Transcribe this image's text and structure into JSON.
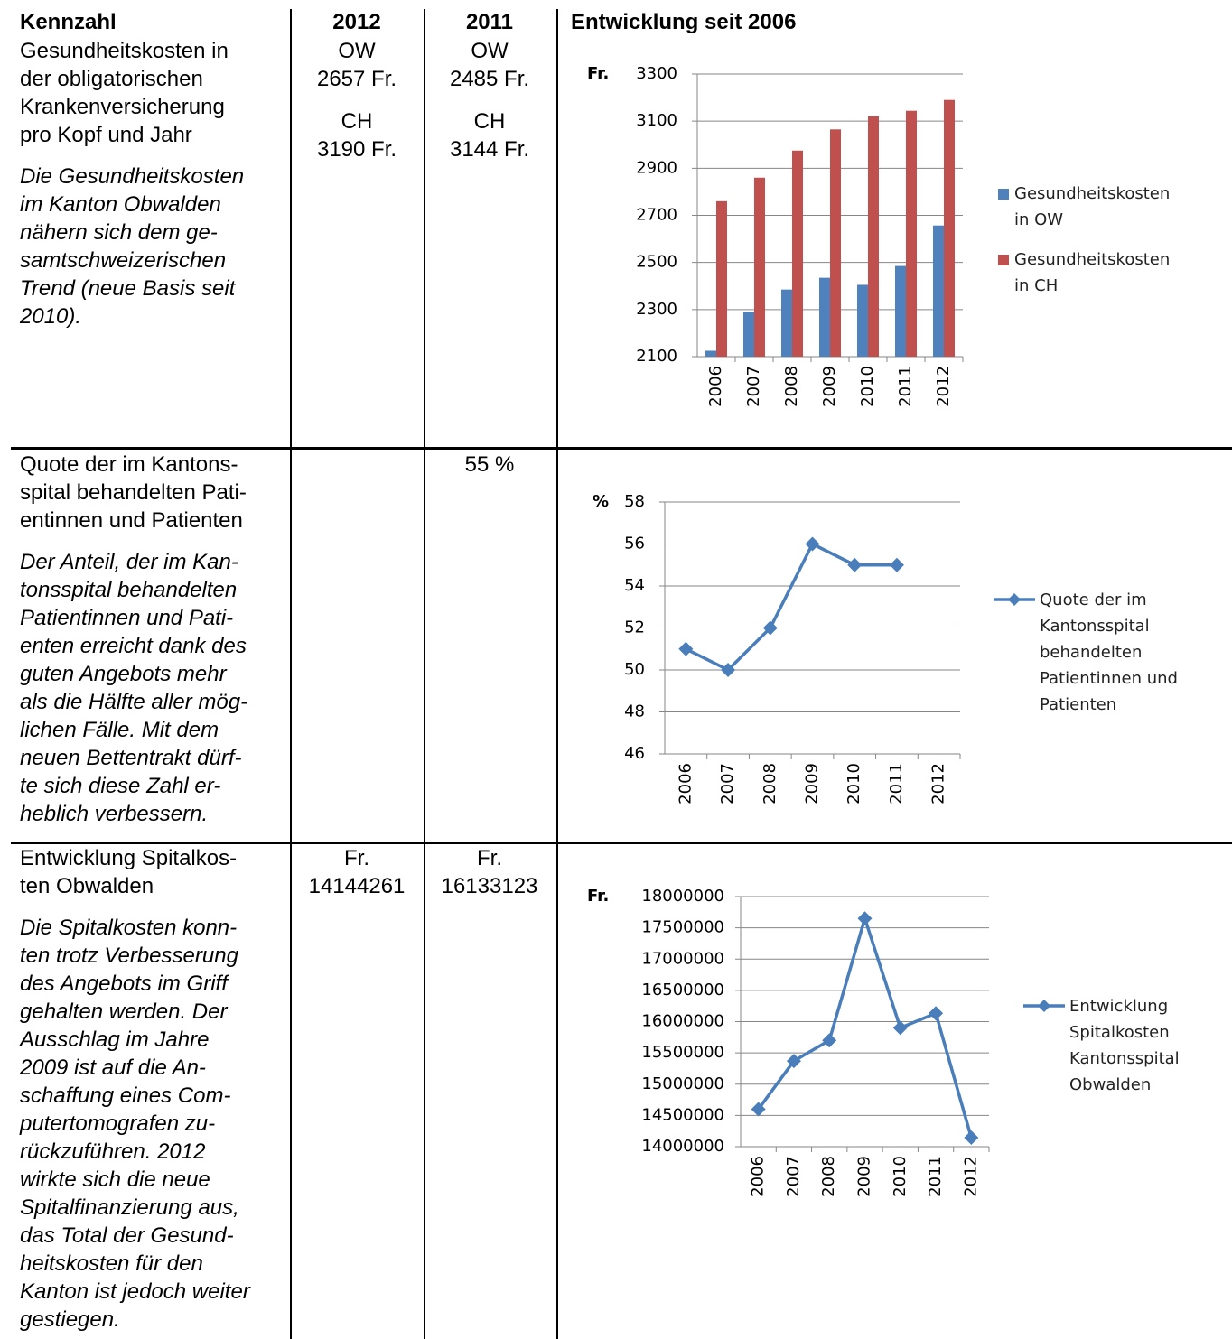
{
  "header": {
    "kennzahl": "Kennzahl",
    "y2012": "2012",
    "y2011": "2011",
    "entwicklung": "Entwicklung seit 2006"
  },
  "table": {
    "rows": [
      {
        "title_lines": [
          "Gesundheitskosten in",
          "der obligatorischen",
          "Krankenversicherung",
          "pro Kopf und Jahr"
        ],
        "description_lines": [
          "Die Gesundheitskosten",
          "im Kanton Obwalden",
          "nähern sich dem ge-",
          "samtschweizerischen",
          "Trend (neue Basis seit",
          "2010)."
        ],
        "y2012": [
          [
            "OW",
            "2657 Fr."
          ],
          [
            "CH",
            "3190 Fr."
          ]
        ],
        "y2011": [
          [
            "OW",
            "2485 Fr."
          ],
          [
            "CH",
            "3144 Fr."
          ]
        ]
      },
      {
        "title_lines": [
          "Quote der im Kantons-",
          "spital behandelten Pati-",
          "entinnen und Patienten"
        ],
        "description_lines": [
          "Der Anteil, der im Kan-",
          "tonsspital behandelten",
          "Patientinnen und Pati-",
          "enten erreicht dank des",
          "guten Angebots mehr",
          "als die Hälfte aller mög-",
          "lichen Fälle. Mit dem",
          "neuen Bettentrakt dürf-",
          "te sich diese Zahl er-",
          "heblich verbessern."
        ],
        "y2012": [],
        "y2011": [
          [
            "55 %"
          ]
        ]
      },
      {
        "title_lines": [
          "Entwicklung Spitalkos-",
          "ten Obwalden"
        ],
        "description_lines": [
          "Die Spitalkosten konn-",
          "ten trotz Verbesserung",
          "des Angebots im Griff",
          "gehalten werden. Der",
          "Ausschlag im Jahre",
          "2009 ist auf die An-",
          "schaffung eines Com-",
          "putertomografen zu-",
          "rückzuführen. 2012",
          "wirkte sich die neue",
          "Spitalfinanzierung aus,",
          "das Total der Gesund-",
          "heitskosten für den",
          "Kanton ist jedoch weiter",
          "gestiegen."
        ],
        "y2012": [
          [
            "Fr.",
            "14144261"
          ]
        ],
        "y2011": [
          [
            "Fr.",
            "16133123"
          ]
        ]
      }
    ]
  },
  "chart_data": [
    {
      "type": "bar",
      "y_label": "Fr.",
      "categories": [
        "2006",
        "2007",
        "2008",
        "2009",
        "2010",
        "2011",
        "2012"
      ],
      "series": [
        {
          "name": "Gesundheitskosten in OW",
          "color": "#4f81bd",
          "values": [
            2125,
            2290,
            2385,
            2435,
            2405,
            2485,
            2657
          ]
        },
        {
          "name": "Gesundheitskosten in CH",
          "color": "#c0504d",
          "values": [
            2760,
            2860,
            2975,
            3065,
            3120,
            3144,
            3190
          ]
        }
      ],
      "ylim": [
        2100,
        3300
      ],
      "yticks": [
        2100,
        2300,
        2500,
        2700,
        2900,
        3100,
        3300
      ],
      "grid": true,
      "legend": "right"
    },
    {
      "type": "line",
      "y_label": "%",
      "categories": [
        "2006",
        "2007",
        "2008",
        "2009",
        "2010",
        "2011",
        "2012"
      ],
      "series": [
        {
          "name": "Quote der im Kantonsspital behandelten Patientinnen und Patienten",
          "color": "#4a7ebb",
          "values": [
            51,
            50,
            52,
            56,
            55,
            55,
            null
          ]
        }
      ],
      "ylim": [
        46,
        58
      ],
      "yticks": [
        46,
        48,
        50,
        52,
        54,
        56,
        58
      ],
      "grid": true,
      "legend": "right"
    },
    {
      "type": "line",
      "y_label": "Fr.",
      "categories": [
        "2006",
        "2007",
        "2008",
        "2009",
        "2010",
        "2011",
        "2012"
      ],
      "series": [
        {
          "name": "Entwicklung Spitalkosten Kantonsspital Obwalden",
          "color": "#4a7ebb",
          "values": [
            14600000,
            15370000,
            15700000,
            17650000,
            15900000,
            16133123,
            14144261
          ]
        }
      ],
      "ylim": [
        14000000,
        18000000
      ],
      "yticks": [
        14000000,
        14500000,
        15000000,
        15500000,
        16000000,
        16500000,
        17000000,
        17500000,
        18000000
      ],
      "grid": true,
      "legend": "right"
    }
  ]
}
